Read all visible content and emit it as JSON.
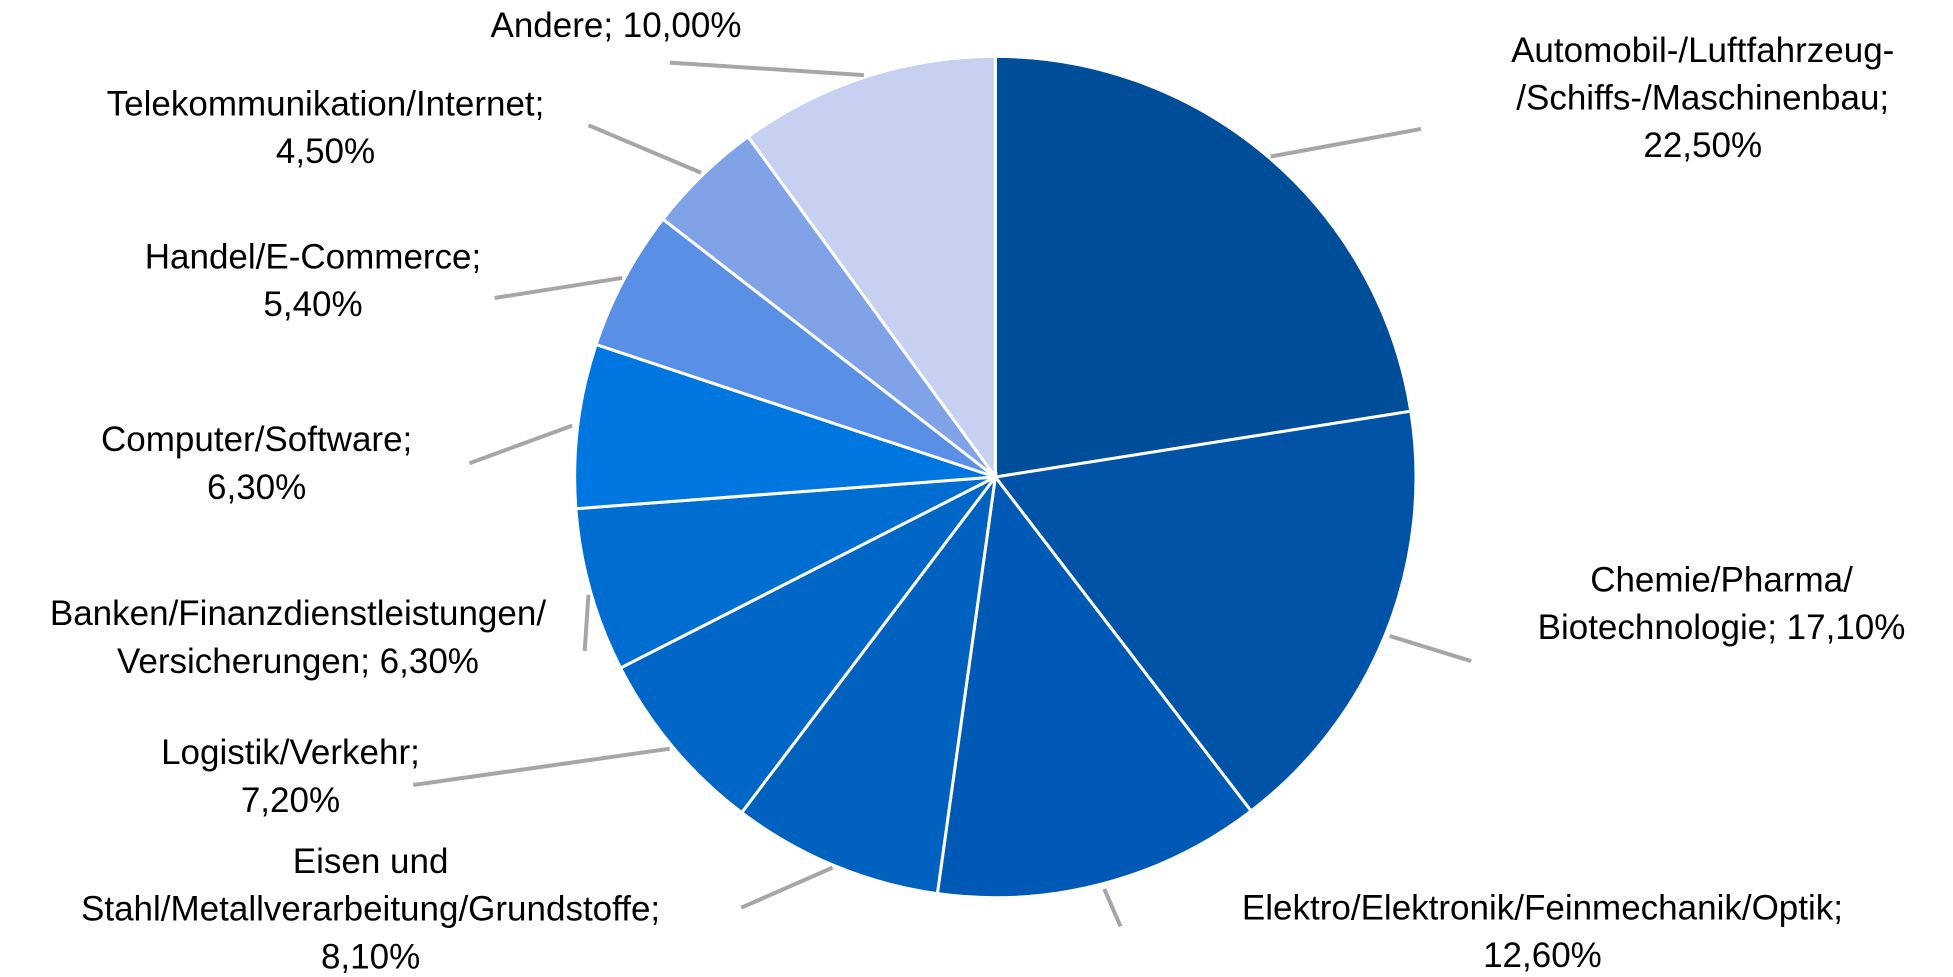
{
  "chart_data": {
    "type": "pie",
    "labels": [
      [
        "Automobil-/Luftfahrzeug-",
        "/Schiffs-/Maschinenbau;",
        "22,50%"
      ],
      [
        "Chemie/Pharma/",
        "Biotechnologie; 17,10%"
      ],
      [
        "Elektro/Elektronik/Feinmechanik/Optik;",
        "12,60%"
      ],
      [
        "Eisen und",
        "Stahl/Metallverarbeitung/Grundstoffe;",
        "8,10%"
      ],
      [
        "Logistik/Verkehr;",
        "7,20%"
      ],
      [
        "Banken/Finanzdienstleistungen/",
        "Versicherungen; 6,30%"
      ],
      [
        "Computer/Software;",
        "6,30%"
      ],
      [
        "Handel/E-Commerce;",
        "5,40%"
      ],
      [
        "Telekommunikation/Internet;",
        "4,50%"
      ],
      [
        "Andere; 10,00%"
      ]
    ],
    "values": [
      22.5,
      17.1,
      12.6,
      8.1,
      7.2,
      6.3,
      6.3,
      5.4,
      4.5,
      10.0
    ],
    "colors": [
      "#004d99",
      "#0053a6",
      "#005ab5",
      "#0061bf",
      "#0067c7",
      "#006ed1",
      "#0076e0",
      "#5a8fe6",
      "#80a3e8",
      "#c6d1f2"
    ]
  }
}
